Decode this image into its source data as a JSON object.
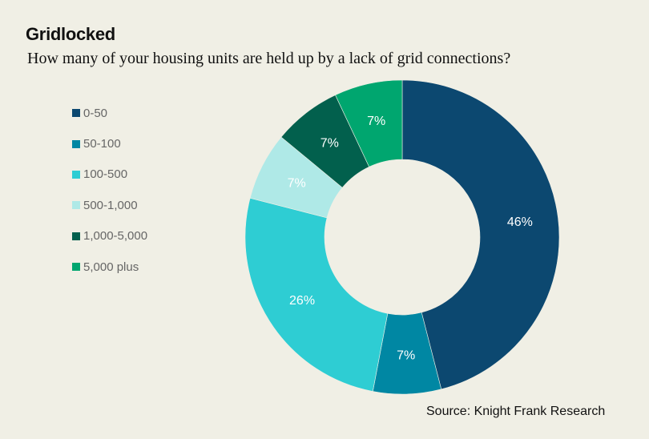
{
  "chart_data": {
    "type": "pie",
    "donut": true,
    "title": "Gridlocked",
    "subtitle": "How many of your housing units are held up by a lack of grid connections?",
    "source": "Source: Knight Frank Research",
    "legend_position": "left",
    "slices": [
      {
        "label": "0-50",
        "value": 46,
        "display": "46%",
        "color": "#0c4870",
        "label_color": "#ffffff"
      },
      {
        "label": "50-100",
        "value": 7,
        "display": "7%",
        "color": "#0087a3",
        "label_color": "#ffffff"
      },
      {
        "label": "100-500",
        "value": 26,
        "display": "26%",
        "color": "#2ecdd3",
        "label_color": "#ffffff"
      },
      {
        "label": "500-1,000",
        "value": 7,
        "display": "7%",
        "color": "#afe9e7",
        "label_color": "#ffffff"
      },
      {
        "label": "1,000-5,000",
        "value": 7,
        "display": "7%",
        "color": "#02604d",
        "label_color": "#ffffff"
      },
      {
        "label": "5,000 plus",
        "value": 7,
        "display": "7%",
        "color": "#00a66f",
        "label_color": "#ffffff"
      }
    ]
  }
}
